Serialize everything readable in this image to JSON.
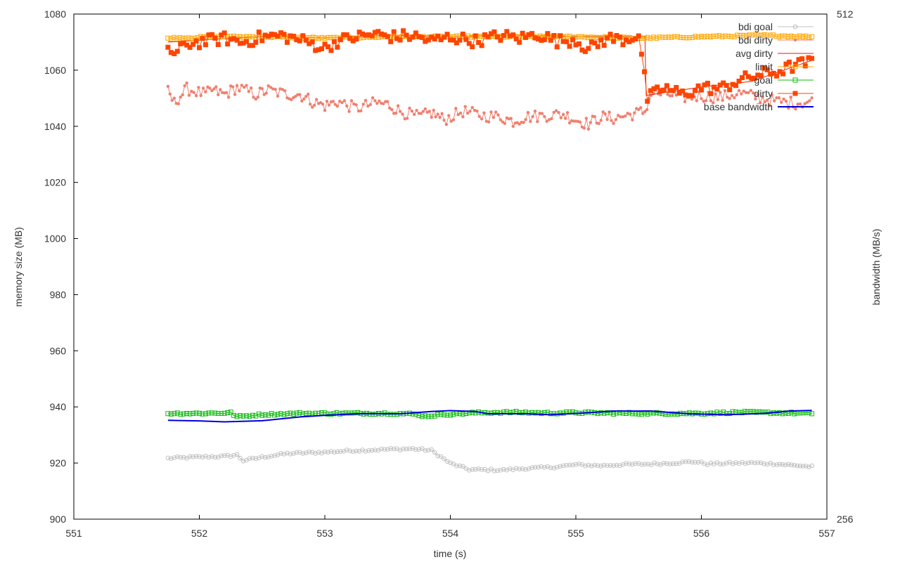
{
  "chart_data": {
    "type": "line",
    "xlabel": "time (s)",
    "ylabel": "memory size (MB)",
    "y2label": "bandwidth (MB/s)",
    "xlim": [
      551,
      557
    ],
    "ylim": [
      900,
      1080
    ],
    "y2lim": [
      256,
      512
    ],
    "x_ticks": [
      "551",
      "552",
      "553",
      "554",
      "555",
      "556",
      "557"
    ],
    "y_ticks": [
      "900",
      "920",
      "940",
      "960",
      "980",
      "1000",
      "1020",
      "1040",
      "1060",
      "1080"
    ],
    "y2_ticks": [
      "256",
      "512"
    ],
    "grid": false,
    "legend_position": "top-right",
    "series": [
      {
        "name": "bdi goal",
        "color": "#c0c0c0",
        "marker": "circle",
        "axis": "y",
        "points": [
          [
            551.75,
            921.8
          ],
          [
            552.0,
            922.3
          ],
          [
            552.2,
            922.5
          ],
          [
            552.3,
            923.0
          ],
          [
            552.35,
            921.0
          ],
          [
            552.5,
            922.2
          ],
          [
            552.7,
            923.5
          ],
          [
            553.0,
            924.0
          ],
          [
            553.2,
            924.5
          ],
          [
            553.5,
            925.0
          ],
          [
            553.7,
            925.2
          ],
          [
            553.85,
            924.6
          ],
          [
            554.0,
            920.0
          ],
          [
            554.15,
            917.8
          ],
          [
            554.4,
            917.6
          ],
          [
            554.6,
            918.2
          ],
          [
            554.8,
            918.6
          ],
          [
            555.0,
            919.5
          ],
          [
            555.2,
            919.2
          ],
          [
            555.4,
            919.6
          ],
          [
            555.6,
            919.8
          ],
          [
            555.8,
            920.2
          ],
          [
            555.95,
            920.6
          ],
          [
            556.05,
            919.8
          ],
          [
            556.2,
            920.0
          ],
          [
            556.4,
            920.2
          ],
          [
            556.6,
            919.8
          ],
          [
            556.88,
            918.8
          ]
        ]
      },
      {
        "name": "bdi dirty",
        "color": "#f08070",
        "marker": "dot",
        "axis": "y",
        "points": [
          [
            551.75,
            1053
          ],
          [
            551.8,
            1049
          ],
          [
            551.9,
            1054
          ],
          [
            552.05,
            1052
          ],
          [
            552.1,
            1053.5
          ],
          [
            552.2,
            1052
          ],
          [
            552.3,
            1054.5
          ],
          [
            552.45,
            1052
          ],
          [
            552.55,
            1053.5
          ],
          [
            552.7,
            1052
          ],
          [
            552.8,
            1052
          ],
          [
            552.9,
            1049.5
          ],
          [
            553.0,
            1048
          ],
          [
            553.1,
            1049.5
          ],
          [
            553.25,
            1047
          ],
          [
            553.4,
            1049
          ],
          [
            553.5,
            1048.5
          ],
          [
            553.6,
            1046
          ],
          [
            553.75,
            1044
          ],
          [
            553.85,
            1045.5
          ],
          [
            553.95,
            1043
          ],
          [
            554.1,
            1046
          ],
          [
            554.25,
            1044.5
          ],
          [
            554.4,
            1044
          ],
          [
            554.5,
            1042.5
          ],
          [
            554.6,
            1044
          ],
          [
            554.75,
            1044.5
          ],
          [
            554.9,
            1045
          ],
          [
            555.0,
            1043
          ],
          [
            555.1,
            1041.5
          ],
          [
            555.2,
            1044
          ],
          [
            555.3,
            1043.5
          ],
          [
            555.45,
            1045
          ],
          [
            555.55,
            1046
          ],
          [
            555.6,
            1052.5
          ],
          [
            555.75,
            1052
          ],
          [
            555.85,
            1051
          ],
          [
            556.0,
            1051.5
          ],
          [
            556.15,
            1051
          ],
          [
            556.3,
            1052.5
          ],
          [
            556.45,
            1051
          ],
          [
            556.6,
            1049.5
          ],
          [
            556.75,
            1049
          ],
          [
            556.88,
            1049.5
          ]
        ]
      },
      {
        "name": "avg dirty",
        "color": "#dd2200",
        "marker": "none",
        "axis": "y",
        "points": [
          [
            551.75,
            1070
          ],
          [
            552.5,
            1072
          ],
          [
            553.0,
            1071.5
          ],
          [
            553.5,
            1072.5
          ],
          [
            554.0,
            1072
          ],
          [
            554.5,
            1072.5
          ],
          [
            555.0,
            1072
          ],
          [
            555.5,
            1072
          ],
          [
            555.55,
            1072
          ],
          [
            555.56,
            1051
          ],
          [
            556.0,
            1054
          ],
          [
            556.4,
            1056
          ],
          [
            556.88,
            1063.5
          ]
        ]
      },
      {
        "name": "limit",
        "color": "#ffa500",
        "marker": "square",
        "axis": "y",
        "points": [
          [
            551.75,
            1071.5
          ],
          [
            552.2,
            1072
          ],
          [
            552.5,
            1072
          ],
          [
            553.0,
            1071.5
          ],
          [
            553.5,
            1072
          ],
          [
            554.0,
            1072
          ],
          [
            554.5,
            1072
          ],
          [
            555.0,
            1072
          ],
          [
            555.5,
            1071.5
          ],
          [
            556.0,
            1072
          ],
          [
            556.5,
            1072.5
          ],
          [
            556.88,
            1072
          ]
        ]
      },
      {
        "name": "goal",
        "color": "#11bb11",
        "marker": "square",
        "axis": "y",
        "points": [
          [
            551.75,
            937.8
          ],
          [
            552.0,
            937.8
          ],
          [
            552.25,
            938.0
          ],
          [
            552.3,
            936.6
          ],
          [
            552.5,
            937.4
          ],
          [
            552.8,
            937.8
          ],
          [
            553.0,
            937.8
          ],
          [
            553.5,
            937.8
          ],
          [
            553.7,
            937.6
          ],
          [
            553.8,
            936.8
          ],
          [
            553.95,
            937.4
          ],
          [
            554.2,
            938.0
          ],
          [
            554.5,
            938.2
          ],
          [
            554.8,
            937.9
          ],
          [
            555.0,
            938.1
          ],
          [
            555.2,
            937.9
          ],
          [
            555.5,
            937.8
          ],
          [
            556.0,
            937.8
          ],
          [
            556.3,
            938.2
          ],
          [
            556.6,
            938.0
          ],
          [
            556.88,
            937.8
          ]
        ]
      },
      {
        "name": "dirty",
        "color": "#ff4400",
        "marker": "filled-square",
        "axis": "y",
        "points": [
          [
            551.75,
            1069
          ],
          [
            551.8,
            1066
          ],
          [
            551.9,
            1070
          ],
          [
            552.05,
            1071
          ],
          [
            552.2,
            1072
          ],
          [
            552.35,
            1070.5
          ],
          [
            552.5,
            1072.5
          ],
          [
            552.65,
            1073
          ],
          [
            552.8,
            1071.5
          ],
          [
            553.0,
            1068.5
          ],
          [
            553.1,
            1071
          ],
          [
            553.25,
            1072.5
          ],
          [
            553.4,
            1073.5
          ],
          [
            553.55,
            1072.5
          ],
          [
            553.7,
            1073
          ],
          [
            553.85,
            1071
          ],
          [
            554.0,
            1072.5
          ],
          [
            554.2,
            1071
          ],
          [
            554.4,
            1073
          ],
          [
            554.55,
            1072
          ],
          [
            554.7,
            1073.5
          ],
          [
            554.85,
            1071
          ],
          [
            555.0,
            1071.5
          ],
          [
            555.1,
            1068
          ],
          [
            555.25,
            1072
          ],
          [
            555.4,
            1071.5
          ],
          [
            555.5,
            1073.5
          ],
          [
            555.57,
            1050.5
          ],
          [
            555.7,
            1054.5
          ],
          [
            555.85,
            1052
          ],
          [
            556.0,
            1054.5
          ],
          [
            556.15,
            1054
          ],
          [
            556.3,
            1057
          ],
          [
            556.45,
            1059
          ],
          [
            556.6,
            1060
          ],
          [
            556.75,
            1062.5
          ],
          [
            556.88,
            1063.5
          ]
        ]
      },
      {
        "name": "base bandwidth",
        "color": "#0000dd",
        "marker": "none",
        "axis": "y2",
        "points": [
          [
            551.75,
            306.1
          ],
          [
            552.0,
            305.8
          ],
          [
            552.2,
            305.3
          ],
          [
            552.5,
            305.9
          ],
          [
            552.8,
            307.8
          ],
          [
            553.0,
            308.6
          ],
          [
            553.3,
            309.5
          ],
          [
            553.6,
            309.4
          ],
          [
            553.85,
            310.6
          ],
          [
            554.0,
            311.0
          ],
          [
            554.2,
            310.6
          ],
          [
            554.3,
            309.4
          ],
          [
            554.6,
            309.4
          ],
          [
            554.8,
            308.9
          ],
          [
            555.0,
            309.6
          ],
          [
            555.3,
            310.8
          ],
          [
            555.6,
            310.8
          ],
          [
            555.9,
            309.4
          ],
          [
            556.2,
            308.9
          ],
          [
            556.5,
            309.6
          ],
          [
            556.7,
            310.8
          ],
          [
            556.88,
            311.1
          ]
        ]
      }
    ]
  }
}
